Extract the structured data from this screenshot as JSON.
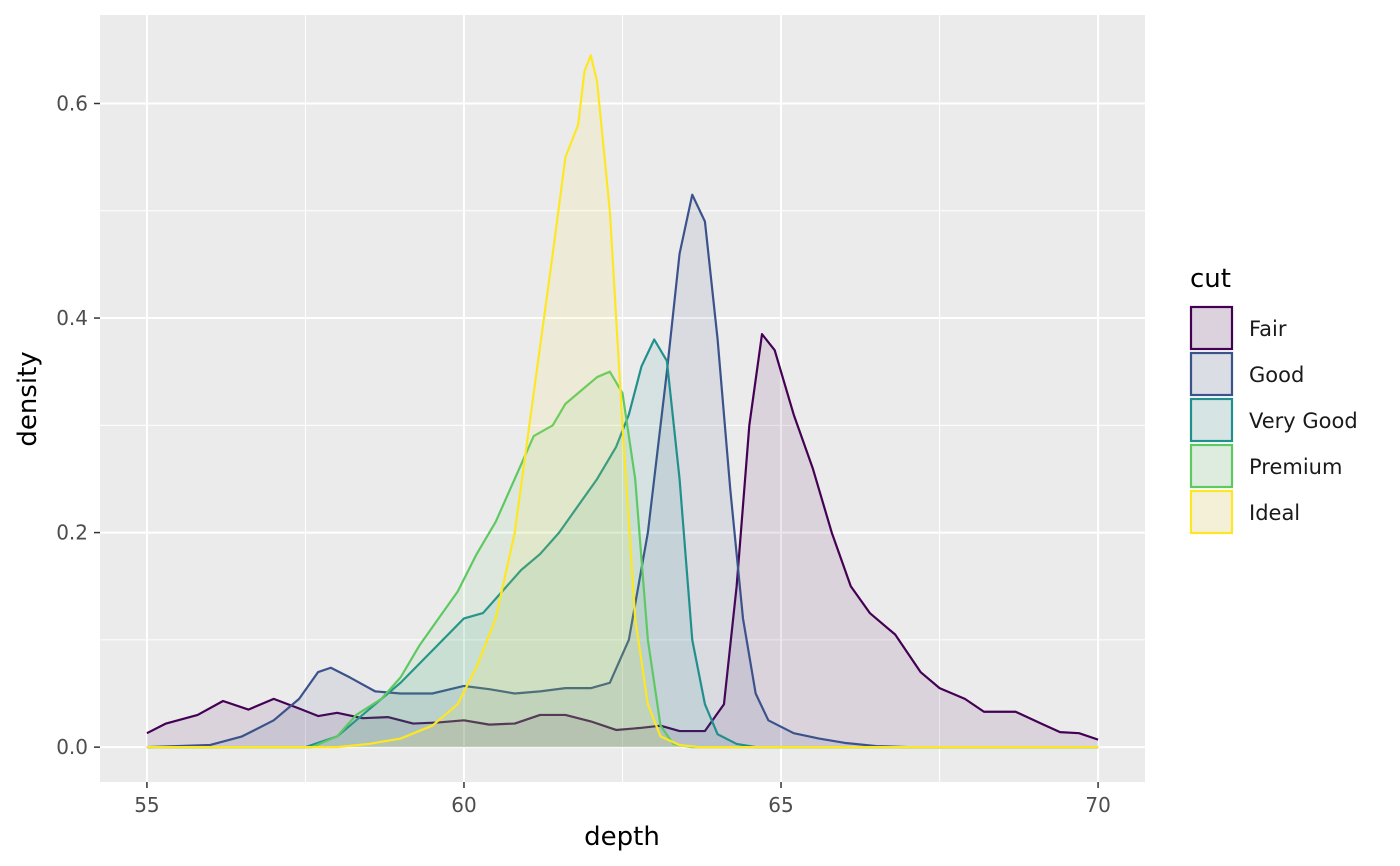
{
  "chart_data": {
    "type": "area",
    "title": "",
    "xlabel": "depth",
    "ylabel": "density",
    "xlim": [
      54.26,
      70.74
    ],
    "ylim": [
      -0.0325,
      0.6825
    ],
    "x_ticks": [
      55,
      60,
      65,
      70
    ],
    "y_ticks": [
      0.0,
      0.2,
      0.4,
      0.6
    ],
    "x_tick_labels": [
      "55",
      "60",
      "65",
      "70"
    ],
    "y_tick_labels": [
      "0.0",
      "0.2",
      "0.4",
      "0.6"
    ],
    "grid": true,
    "legend": {
      "title": "cut",
      "placement": "right"
    },
    "series": [
      {
        "name": "Fair",
        "color": "#440154",
        "points": [
          [
            55,
            0.013
          ],
          [
            55.3,
            0.022
          ],
          [
            55.8,
            0.03
          ],
          [
            56.2,
            0.043
          ],
          [
            56.6,
            0.035
          ],
          [
            57.0,
            0.045
          ],
          [
            57.4,
            0.036
          ],
          [
            57.7,
            0.029
          ],
          [
            58.0,
            0.032
          ],
          [
            58.4,
            0.027
          ],
          [
            58.8,
            0.028
          ],
          [
            59.2,
            0.022
          ],
          [
            59.6,
            0.023
          ],
          [
            60.0,
            0.025
          ],
          [
            60.4,
            0.021
          ],
          [
            60.8,
            0.022
          ],
          [
            61.2,
            0.03
          ],
          [
            61.6,
            0.03
          ],
          [
            62.0,
            0.024
          ],
          [
            62.4,
            0.016
          ],
          [
            62.8,
            0.018
          ],
          [
            63.1,
            0.02
          ],
          [
            63.4,
            0.015
          ],
          [
            63.8,
            0.015
          ],
          [
            64.1,
            0.04
          ],
          [
            64.3,
            0.15
          ],
          [
            64.5,
            0.3
          ],
          [
            64.7,
            0.385
          ],
          [
            64.9,
            0.37
          ],
          [
            65.2,
            0.31
          ],
          [
            65.5,
            0.26
          ],
          [
            65.8,
            0.2
          ],
          [
            66.1,
            0.15
          ],
          [
            66.4,
            0.125
          ],
          [
            66.8,
            0.105
          ],
          [
            67.2,
            0.07
          ],
          [
            67.5,
            0.055
          ],
          [
            67.9,
            0.045
          ],
          [
            68.2,
            0.033
          ],
          [
            68.7,
            0.033
          ],
          [
            69.1,
            0.022
          ],
          [
            69.4,
            0.014
          ],
          [
            69.7,
            0.013
          ],
          [
            70.0,
            0.007
          ]
        ]
      },
      {
        "name": "Good",
        "color": "#3b528b",
        "points": [
          [
            55,
            0.0
          ],
          [
            56,
            0.002
          ],
          [
            56.5,
            0.01
          ],
          [
            57.0,
            0.025
          ],
          [
            57.4,
            0.045
          ],
          [
            57.7,
            0.07
          ],
          [
            57.9,
            0.074
          ],
          [
            58.2,
            0.065
          ],
          [
            58.6,
            0.052
          ],
          [
            59.0,
            0.05
          ],
          [
            59.5,
            0.05
          ],
          [
            60.0,
            0.057
          ],
          [
            60.4,
            0.054
          ],
          [
            60.8,
            0.05
          ],
          [
            61.2,
            0.052
          ],
          [
            61.6,
            0.055
          ],
          [
            62.0,
            0.055
          ],
          [
            62.3,
            0.06
          ],
          [
            62.6,
            0.1
          ],
          [
            62.9,
            0.2
          ],
          [
            63.2,
            0.35
          ],
          [
            63.4,
            0.46
          ],
          [
            63.6,
            0.515
          ],
          [
            63.8,
            0.49
          ],
          [
            64.0,
            0.38
          ],
          [
            64.2,
            0.24
          ],
          [
            64.4,
            0.12
          ],
          [
            64.6,
            0.05
          ],
          [
            64.8,
            0.025
          ],
          [
            65.2,
            0.013
          ],
          [
            65.6,
            0.008
          ],
          [
            66.0,
            0.004
          ],
          [
            66.5,
            0.001
          ],
          [
            67.0,
            0.0
          ],
          [
            70.0,
            0.0
          ]
        ]
      },
      {
        "name": "Very Good",
        "color": "#21908d",
        "points": [
          [
            55,
            0.0
          ],
          [
            57.5,
            0.0
          ],
          [
            58.0,
            0.01
          ],
          [
            58.5,
            0.035
          ],
          [
            59.0,
            0.06
          ],
          [
            59.5,
            0.09
          ],
          [
            60.0,
            0.12
          ],
          [
            60.3,
            0.125
          ],
          [
            60.6,
            0.145
          ],
          [
            60.9,
            0.165
          ],
          [
            61.2,
            0.18
          ],
          [
            61.5,
            0.2
          ],
          [
            61.8,
            0.225
          ],
          [
            62.1,
            0.25
          ],
          [
            62.4,
            0.28
          ],
          [
            62.6,
            0.31
          ],
          [
            62.8,
            0.355
          ],
          [
            63.0,
            0.38
          ],
          [
            63.2,
            0.36
          ],
          [
            63.4,
            0.25
          ],
          [
            63.6,
            0.1
          ],
          [
            63.8,
            0.04
          ],
          [
            64.0,
            0.012
          ],
          [
            64.3,
            0.003
          ],
          [
            64.6,
            0.0
          ],
          [
            70.0,
            0.0
          ]
        ]
      },
      {
        "name": "Premium",
        "color": "#5ec962",
        "points": [
          [
            55,
            0.0
          ],
          [
            57.6,
            0.0
          ],
          [
            58.0,
            0.01
          ],
          [
            58.3,
            0.03
          ],
          [
            58.7,
            0.045
          ],
          [
            59.0,
            0.065
          ],
          [
            59.3,
            0.095
          ],
          [
            59.6,
            0.12
          ],
          [
            59.9,
            0.145
          ],
          [
            60.2,
            0.18
          ],
          [
            60.5,
            0.21
          ],
          [
            60.8,
            0.25
          ],
          [
            61.1,
            0.29
          ],
          [
            61.4,
            0.3
          ],
          [
            61.6,
            0.32
          ],
          [
            61.9,
            0.335
          ],
          [
            62.1,
            0.345
          ],
          [
            62.3,
            0.35
          ],
          [
            62.5,
            0.33
          ],
          [
            62.7,
            0.25
          ],
          [
            62.9,
            0.1
          ],
          [
            63.1,
            0.02
          ],
          [
            63.3,
            0.003
          ],
          [
            63.6,
            0.0
          ],
          [
            70.0,
            0.0
          ]
        ]
      },
      {
        "name": "Ideal",
        "color": "#fde725",
        "points": [
          [
            55,
            0.0
          ],
          [
            58.0,
            0.0
          ],
          [
            58.5,
            0.003
          ],
          [
            59.0,
            0.008
          ],
          [
            59.5,
            0.02
          ],
          [
            59.9,
            0.04
          ],
          [
            60.2,
            0.075
          ],
          [
            60.5,
            0.12
          ],
          [
            60.8,
            0.2
          ],
          [
            61.1,
            0.33
          ],
          [
            61.4,
            0.46
          ],
          [
            61.6,
            0.55
          ],
          [
            61.8,
            0.58
          ],
          [
            61.9,
            0.63
          ],
          [
            62.0,
            0.645
          ],
          [
            62.1,
            0.62
          ],
          [
            62.3,
            0.5
          ],
          [
            62.5,
            0.3
          ],
          [
            62.7,
            0.12
          ],
          [
            62.9,
            0.04
          ],
          [
            63.1,
            0.01
          ],
          [
            63.4,
            0.002
          ],
          [
            63.7,
            0.0
          ],
          [
            70.0,
            0.0
          ]
        ]
      }
    ]
  }
}
